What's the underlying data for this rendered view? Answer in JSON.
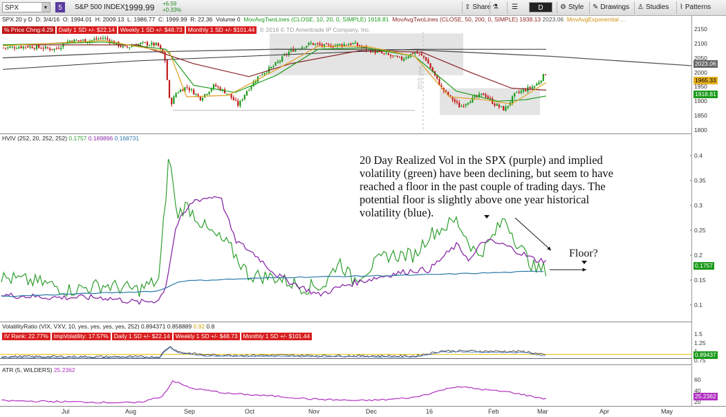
{
  "toolbar": {
    "symbol": "SPX",
    "badge": "5",
    "name": "S&P 500 INDEX",
    "last": "1999.99",
    "change": "+6.59",
    "change_pct": "+0.33%",
    "period": "D",
    "buttons": [
      "Share",
      "Style",
      "Drawings",
      "Studies",
      "Patterns"
    ]
  },
  "quote": {
    "label": "SPX 20 y D",
    "date": "D: 3/4/16",
    "open": "O: 1994.01",
    "high": "H: 2009.13",
    "low": "L: 1986.77",
    "close": "C: 1999.99",
    "range": "R: 22.36",
    "volume": "Volume",
    "volume_val": "0",
    "ma1": "MovAvgTwoLines (CLOSE, 10, 20, 0, SIMPLE)",
    "ma1_val": "1918.81",
    "ma2": "MovAvgTwoLines (CLOSE, 50, 200, 0, SIMPLE)",
    "ma2_val": "1938.13",
    "ma2_val2": "2023.06",
    "ma3": "MovAvgExponential ..."
  },
  "price_row": {
    "price_chng": "% Price Chng:4.29",
    "daily": "Daily 1 SD +/- $22.14",
    "weekly": "Weekly 1 SD +/- $48.73",
    "monthly": "Monthly 1 SD +/- $101.44",
    "copyright": "© 2016 © TD Ameritrade IP Company, Inc."
  },
  "price_axis": {
    "ticks": [
      "2150",
      "2100",
      "2050",
      "2000",
      "1950",
      "1900",
      "1850",
      "1800"
    ],
    "badges": [
      "2023.06",
      "1965.33",
      "1918.81"
    ]
  },
  "year_marker": "2015 year",
  "hviv": {
    "label": "HVIV (252, 20, 252, 252)",
    "v1": "0.1757",
    "v2": "0.189896",
    "v3": "0.168731",
    "ticks": [
      "0.4",
      "0.35",
      "0.3",
      "0.25",
      "0.2",
      "0.15",
      "0.1"
    ],
    "badge": "0.1757"
  },
  "annotation": "20 Day Realized Vol in the SPX (purple)  and implied volatility (green) have been declining, but seem to have reached a floor in the past couple of trading days. The potential floor is slightly above one year historical volatility (blue).",
  "floor_label": "Floor?",
  "vr": {
    "label": "VolatilityRatio (VIX, VXV, 10, yes, yes, yes, yes, 252)",
    "v1": "0.894371",
    "v2": "0.858889",
    "v3": "0.92",
    "v4": "0.8",
    "iv_rank": "IV Rank: 22.77%",
    "imp_vol": "ImpVolatility: 17.57%",
    "daily": "Daily 1 SD +/- $22.14",
    "weekly": "Weekly 1 SD +/- $48.73",
    "monthly": "Monthly 1 SD +/- $101.44",
    "ticks": [
      "1.5",
      "1.25",
      "1",
      "0.75"
    ],
    "badge": "0.89437"
  },
  "atr": {
    "label": "ATR (5, WILDERS)",
    "value": "25.2362",
    "ticks": [
      "60",
      "40",
      "20"
    ],
    "badge": "25.2362"
  },
  "x_labels": [
    "Jul",
    "Aug",
    "Sep",
    "Oct",
    "Nov",
    "Dec",
    "16",
    "Feb",
    "Mar",
    "Apr",
    "May"
  ],
  "colors": {
    "hv20": "#8a2aa8",
    "iv": "#2e9e2e",
    "hv252": "#2a78a8",
    "up": "#1a9a1a",
    "down": "#c21818",
    "ma_gray": "#555555",
    "ma_red": "#8b2323",
    "ma_orange": "#e0a020"
  },
  "chart_data": [
    {
      "type": "line",
      "title": "",
      "x": [
        "Jul",
        "Aug",
        "Sep",
        "Oct",
        "Nov",
        "Dec",
        "16",
        "Feb",
        "Mar"
      ],
      "series": [
        {
          "name": "IV (green)",
          "values": [
            0.14,
            0.13,
            0.28,
            0.16,
            0.14,
            0.18,
            0.22,
            0.27,
            0.18
          ]
        },
        {
          "name": "HV20 (purple)",
          "values": [
            0.12,
            0.11,
            0.31,
            0.16,
            0.12,
            0.17,
            0.19,
            0.23,
            0.19
          ]
        },
        {
          "name": "HV252 (blue)",
          "values": [
            0.12,
            0.125,
            0.15,
            0.155,
            0.158,
            0.16,
            0.163,
            0.168,
            0.169
          ]
        }
      ],
      "ylim": [
        0.07,
        0.43
      ]
    }
  ]
}
